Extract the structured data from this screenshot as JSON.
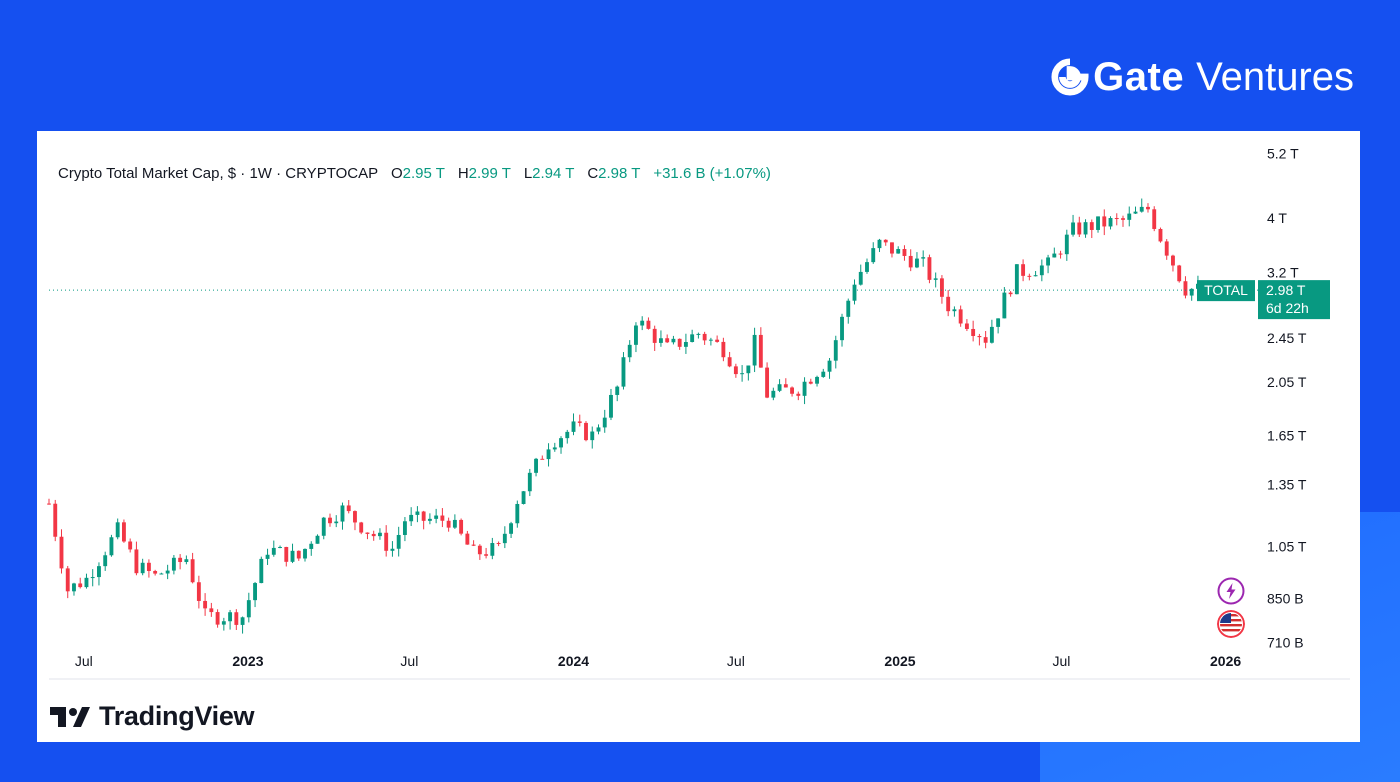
{
  "brand": {
    "name_bold": "Gate",
    "name_light": "Ventures",
    "logo_icon": "gate-logo-icon"
  },
  "chart_header": {
    "title": "Crypto Total Market Cap, $ · 1W · CRYPTOCAP",
    "open_label": "O",
    "open_value": "2.95 T",
    "high_label": "H",
    "high_value": "2.99 T",
    "low_label": "L",
    "low_value": "2.94 T",
    "close_label": "C",
    "close_value": "2.98 T",
    "change": "+31.6 B (+1.07%)"
  },
  "price_tag": {
    "symbol": "TOTAL",
    "price": "2.98 T",
    "countdown": "6d 22h",
    "color": "#089981"
  },
  "footer": {
    "brand": "TradingView"
  },
  "icons": [
    "lightning-icon",
    "us-flag-icon"
  ],
  "colors": {
    "up": "#089981",
    "down": "#F23645",
    "background": "#1550F0"
  },
  "chart_data": {
    "type": "candlestick",
    "title": "Crypto Total Market Cap, $ · 1W · CRYPTOCAP",
    "interval": "1W",
    "scale": "log",
    "y_ticks": [
      "5.2 T",
      "4 T",
      "3.2 T",
      "2.45 T",
      "2.05 T",
      "1.65 T",
      "1.35 T",
      "1.05 T",
      "850 B",
      "710 B"
    ],
    "y_tick_values": [
      5.2,
      4.0,
      3.2,
      2.45,
      2.05,
      1.65,
      1.35,
      1.05,
      0.85,
      0.71
    ],
    "x_ticks": [
      {
        "label": "Jul",
        "date": "2022-07-01",
        "bold": false
      },
      {
        "label": "2023",
        "date": "2023-01-01",
        "bold": true
      },
      {
        "label": "Jul",
        "date": "2023-07-01",
        "bold": false
      },
      {
        "label": "2024",
        "date": "2024-01-01",
        "bold": true
      },
      {
        "label": "Jul",
        "date": "2024-07-01",
        "bold": false
      },
      {
        "label": "2025",
        "date": "2025-01-01",
        "bold": true
      },
      {
        "label": "Jul",
        "date": "2025-07-01",
        "bold": false
      },
      {
        "label": "2026",
        "date": "2026-01-01",
        "bold": true
      }
    ],
    "x_range": [
      "2022-05-23",
      "2026-01-25"
    ],
    "last_close": 2.98,
    "weekly_close_path": [
      [
        "2022-05-23",
        1.25
      ],
      [
        "2022-06-13",
        0.88
      ],
      [
        "2022-07-04",
        0.92
      ],
      [
        "2022-08-08",
        1.12
      ],
      [
        "2022-08-29",
        0.97
      ],
      [
        "2022-09-19",
        0.93
      ],
      [
        "2022-10-24",
        1.0
      ],
      [
        "2022-11-14",
        0.79
      ],
      [
        "2022-12-26",
        0.79
      ],
      [
        "2023-01-23",
        1.04
      ],
      [
        "2023-02-27",
        1.0
      ],
      [
        "2023-03-27",
        1.17
      ],
      [
        "2023-04-17",
        1.22
      ],
      [
        "2023-05-15",
        1.12
      ],
      [
        "2023-06-12",
        1.04
      ],
      [
        "2023-06-26",
        1.17
      ],
      [
        "2023-08-14",
        1.17
      ],
      [
        "2023-09-11",
        1.02
      ],
      [
        "2023-10-09",
        1.04
      ],
      [
        "2023-10-30",
        1.27
      ],
      [
        "2023-12-04",
        1.6
      ],
      [
        "2024-01-01",
        1.7
      ],
      [
        "2024-01-22",
        1.65
      ],
      [
        "2024-02-19",
        2.0
      ],
      [
        "2024-03-11",
        2.65
      ],
      [
        "2024-04-15",
        2.35
      ],
      [
        "2024-05-20",
        2.5
      ],
      [
        "2024-06-17",
        2.35
      ],
      [
        "2024-07-08",
        2.1
      ],
      [
        "2024-07-22",
        2.4
      ],
      [
        "2024-08-05",
        1.95
      ],
      [
        "2024-09-09",
        2.0
      ],
      [
        "2024-10-14",
        2.25
      ],
      [
        "2024-11-11",
        3.1
      ],
      [
        "2024-12-09",
        3.6
      ],
      [
        "2025-01-27",
        3.3
      ],
      [
        "2025-02-24",
        2.8
      ],
      [
        "2025-04-07",
        2.45
      ],
      [
        "2025-05-12",
        3.2
      ],
      [
        "2025-06-16",
        3.3
      ],
      [
        "2025-07-14",
        3.8
      ],
      [
        "2025-08-11",
        3.9
      ],
      [
        "2025-09-08",
        3.95
      ],
      [
        "2025-10-06",
        4.15
      ],
      [
        "2025-10-20",
        3.7
      ],
      [
        "2025-11-17",
        3.0
      ],
      [
        "2025-12-08",
        2.98
      ]
    ]
  }
}
